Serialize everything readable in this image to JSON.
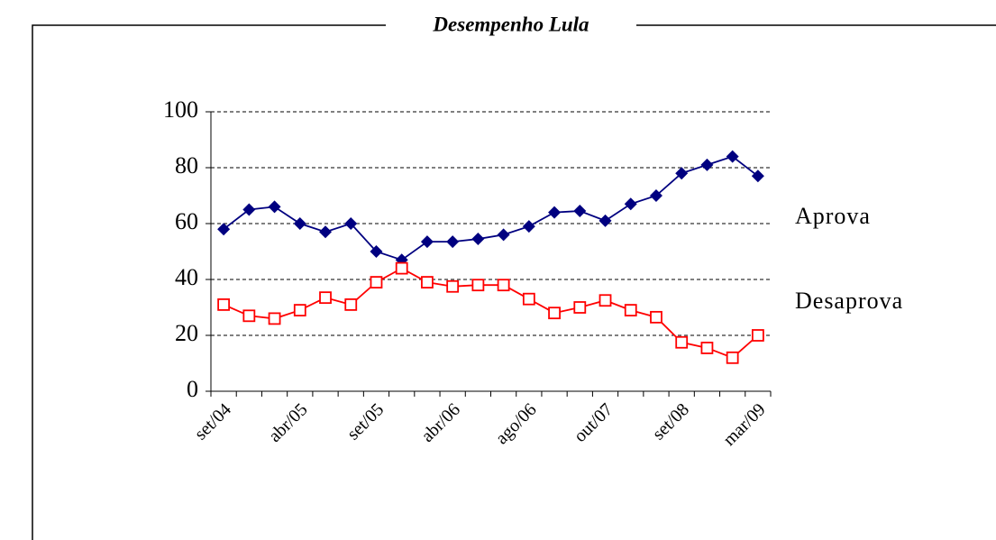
{
  "chart_data": {
    "type": "line",
    "title": "Desempenho Lula",
    "categories": [
      "set/04",
      null,
      null,
      "abr/05",
      null,
      null,
      "set/05",
      null,
      null,
      "abr/06",
      null,
      null,
      "ago/06",
      null,
      null,
      "out/07",
      null,
      null,
      "set/08",
      null,
      null,
      "mar/09"
    ],
    "series": [
      {
        "name": "Aprova",
        "color": "#000080",
        "marker": "diamond",
        "values": [
          58,
          65,
          66,
          60,
          57,
          60,
          50,
          47,
          53.5,
          53.5,
          54.5,
          56,
          59,
          64,
          64.5,
          61,
          67,
          70,
          78,
          81,
          84,
          77
        ]
      },
      {
        "name": "Desaprova",
        "color": "#ff0000",
        "marker": "square",
        "values": [
          31,
          27,
          26,
          29,
          33.5,
          31,
          39,
          44,
          39,
          37.5,
          38,
          38,
          33,
          28,
          30,
          32.5,
          29,
          26.5,
          17.5,
          15.5,
          12,
          20
        ]
      }
    ],
    "ylim": [
      0,
      100
    ],
    "yticks": [
      0,
      20,
      40,
      60,
      80,
      100
    ],
    "grid": true
  }
}
